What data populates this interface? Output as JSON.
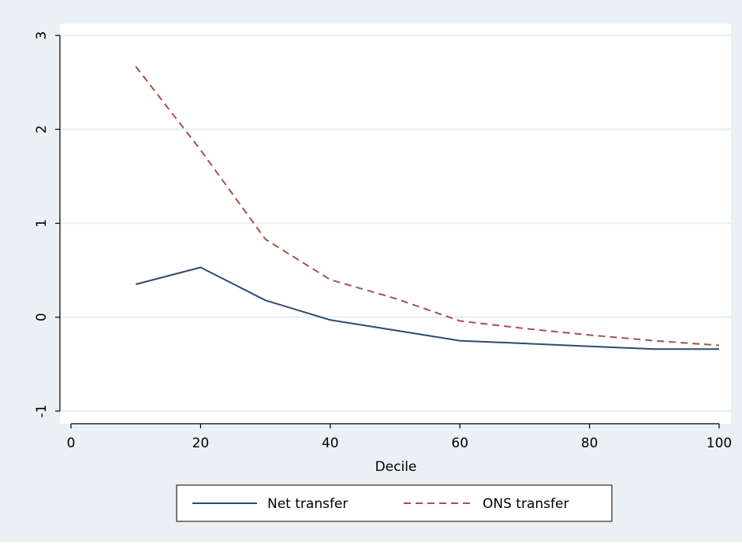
{
  "chart_data": {
    "type": "line",
    "title": "",
    "xlabel": "Decile",
    "ylabel": "",
    "xlim": [
      0,
      100
    ],
    "ylim": [
      -1,
      3
    ],
    "xticks": [
      0,
      20,
      40,
      60,
      80,
      100
    ],
    "yticks": [
      -1,
      0,
      1,
      2,
      3
    ],
    "grid": "horizontal",
    "legend_position": "bottom",
    "series": [
      {
        "name": "Net transfer",
        "style": "solid",
        "color": "#2e4a6e",
        "x": [
          10,
          20,
          30,
          40,
          50,
          60,
          70,
          80,
          90,
          100
        ],
        "values": [
          0.35,
          0.53,
          0.18,
          -0.03,
          -0.14,
          -0.25,
          -0.28,
          -0.31,
          -0.34,
          -0.34
        ]
      },
      {
        "name": "ONS transfer",
        "style": "dashed",
        "color": "#a8504c",
        "x": [
          10,
          20,
          30,
          40,
          50,
          60,
          70,
          80,
          90,
          100
        ],
        "values": [
          2.67,
          1.78,
          0.83,
          0.4,
          0.2,
          -0.04,
          -0.12,
          -0.19,
          -0.25,
          -0.3
        ]
      }
    ]
  },
  "colors": {
    "outer_background": "#eaf0f3",
    "plot_background": "#ffffff",
    "gridline": "#e8eef2",
    "axis": "#000000"
  }
}
